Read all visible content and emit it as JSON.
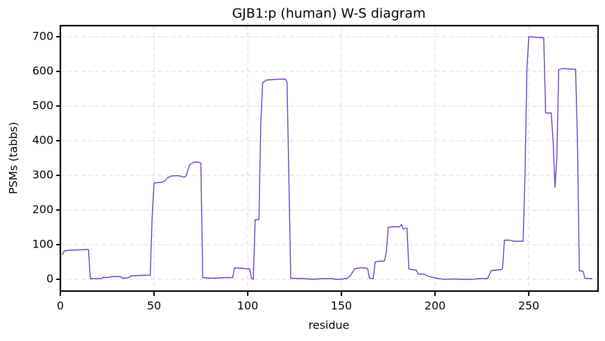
{
  "chart_data": {
    "type": "line",
    "title": "GJB1:p (human) W-S diagram",
    "xlabel": "residue",
    "ylabel": "PSMs (tabbs)",
    "x": [
      1,
      2,
      5,
      10,
      15,
      16,
      20,
      22,
      23,
      25,
      28,
      32,
      33,
      36,
      38,
      42,
      48,
      49,
      50,
      54,
      56,
      57,
      59,
      63,
      66,
      67,
      69,
      71,
      74,
      75,
      76,
      80,
      85,
      88,
      92,
      93,
      96,
      101,
      102,
      103,
      104,
      106,
      107,
      108,
      110,
      115,
      120,
      121,
      123,
      130,
      135,
      140,
      145,
      147,
      150,
      153,
      155,
      157,
      160,
      163,
      164,
      165,
      167,
      168,
      170,
      173,
      174,
      175,
      178,
      181,
      182,
      183,
      185,
      186,
      188,
      190,
      191,
      194,
      196,
      199,
      202,
      205,
      210,
      215,
      220,
      223,
      228,
      230,
      235,
      236,
      237,
      240,
      242,
      247,
      248,
      249,
      250,
      255,
      258,
      259,
      262,
      263,
      264,
      265,
      266,
      268,
      275,
      276,
      277,
      279,
      280,
      284
    ],
    "series": [
      {
        "name": "PSMs",
        "color": "#6a3bc9",
        "values": [
          70,
          82,
          84,
          85,
          86,
          2,
          2,
          2,
          6,
          5,
          8,
          8,
          3,
          4,
          10,
          11,
          12,
          180,
          278,
          280,
          285,
          292,
          298,
          299,
          295,
          297,
          330,
          338,
          338,
          335,
          5,
          3,
          4,
          5,
          5,
          33,
          32,
          30,
          3,
          0,
          172,
          172,
          450,
          568,
          575,
          577,
          578,
          570,
          3,
          2,
          0,
          2,
          2,
          0,
          0,
          3,
          12,
          30,
          33,
          33,
          30,
          3,
          2,
          50,
          52,
          53,
          80,
          150,
          152,
          151,
          158,
          145,
          148,
          30,
          28,
          26,
          15,
          15,
          10,
          5,
          2,
          0,
          1,
          0,
          0,
          2,
          2,
          25,
          28,
          30,
          113,
          113,
          110,
          110,
          300,
          600,
          700,
          698,
          697,
          480,
          480,
          400,
          265,
          350,
          605,
          608,
          606,
          400,
          25,
          23,
          3,
          2
        ]
      }
    ],
    "xlim": [
      0,
      287
    ],
    "ylim": [
      -34,
      732
    ],
    "xticks": [
      0,
      50,
      100,
      150,
      200,
      250
    ],
    "yticks": [
      0,
      100,
      200,
      300,
      400,
      500,
      600,
      700
    ],
    "grid": true
  }
}
